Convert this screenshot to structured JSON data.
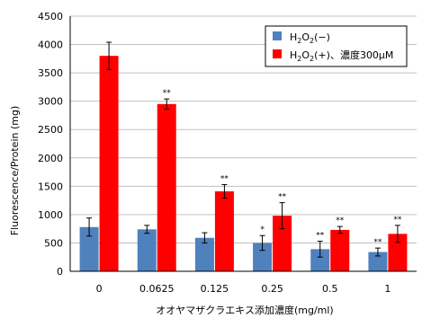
{
  "chart_data": {
    "type": "bar",
    "title": "",
    "xlabel": "オオヤマザクラエキス添加濃度(mg/ml)",
    "ylabel": "Fluorescence/Protein (mg)",
    "ylim": [
      0,
      4500
    ],
    "yticks": [
      0,
      500,
      1000,
      1500,
      2000,
      2500,
      3000,
      3500,
      4000,
      4500
    ],
    "categories": [
      "0",
      "0.0625",
      "0.125",
      "0.25",
      "0.5",
      "1"
    ],
    "legend_position": "top-right",
    "series": [
      {
        "name": "H2O2(−)",
        "name_parts": {
          "base": "H",
          "sub1": "2",
          "mid": "O",
          "sub2": "2",
          "rest": "(−)"
        },
        "color": "#4f81bd",
        "values": [
          780,
          740,
          590,
          500,
          390,
          340
        ],
        "errors": [
          160,
          70,
          90,
          130,
          140,
          70
        ],
        "marks": [
          "",
          "",
          "",
          "*",
          "**",
          "**"
        ]
      },
      {
        "name": "H2O2(+)、濃度300μM",
        "name_parts": {
          "base": "H",
          "sub1": "2",
          "mid": "O",
          "sub2": "2",
          "rest": "(+)、濃度300μM"
        },
        "color": "#ff0000",
        "values": [
          3800,
          2950,
          1410,
          980,
          730,
          660
        ],
        "errors": [
          240,
          90,
          120,
          230,
          60,
          150
        ],
        "marks": [
          "",
          "**",
          "**",
          "**",
          "**",
          "**"
        ]
      }
    ]
  }
}
